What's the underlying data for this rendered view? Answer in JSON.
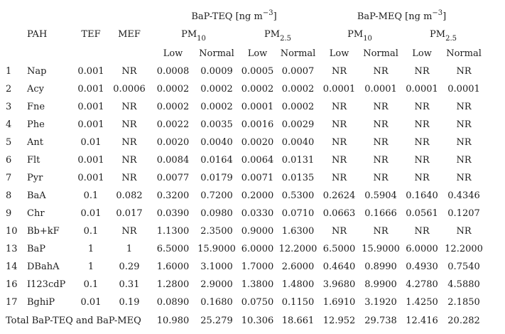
{
  "table": {
    "group_headers": {
      "teq": {
        "text": "BaP-TEQ [ng m",
        "sup": "−3",
        "close": "]"
      },
      "meq": {
        "text": "BaP-MEQ [ng m",
        "sup": "−3",
        "close": "]"
      }
    },
    "columns": {
      "pah": "PAH",
      "tef": "TEF",
      "mef": "MEF"
    },
    "pm_headers": [
      {
        "text": "PM",
        "sub": "10"
      },
      {
        "text": "PM",
        "sub": "2.5"
      },
      {
        "text": "PM",
        "sub": "10"
      },
      {
        "text": "PM",
        "sub": "2.5"
      }
    ],
    "subcolumns": [
      "Low",
      "Normal",
      "Low",
      "Normal",
      "Low",
      "Normal",
      "Low",
      "Normal"
    ],
    "rows": [
      {
        "num": "1",
        "pah": "Nap",
        "tef": "0.001",
        "mef": "NR",
        "values": [
          "0.0008",
          "0.0009",
          "0.0005",
          "0.0007",
          "NR",
          "NR",
          "NR",
          "NR"
        ]
      },
      {
        "num": "2",
        "pah": "Acy",
        "tef": "0.001",
        "mef": "0.0006",
        "values": [
          "0.0002",
          "0.0002",
          "0.0002",
          "0.0002",
          "0.0001",
          "0.0001",
          "0.0001",
          "0.0001"
        ]
      },
      {
        "num": "3",
        "pah": "Fne",
        "tef": "0.001",
        "mef": "NR",
        "values": [
          "0.0002",
          "0.0002",
          "0.0001",
          "0.0002",
          "NR",
          "NR",
          "NR",
          "NR"
        ]
      },
      {
        "num": "4",
        "pah": "Phe",
        "tef": "0.001",
        "mef": "NR",
        "values": [
          "0.0022",
          "0.0035",
          "0.0016",
          "0.0029",
          "NR",
          "NR",
          "NR",
          "NR"
        ]
      },
      {
        "num": "5",
        "pah": "Ant",
        "tef": "0.01",
        "mef": "NR",
        "values": [
          "0.0020",
          "0.0040",
          "0.0020",
          "0.0040",
          "NR",
          "NR",
          "NR",
          "NR"
        ]
      },
      {
        "num": "6",
        "pah": "Flt",
        "tef": "0.001",
        "mef": "NR",
        "values": [
          "0.0084",
          "0.0164",
          "0.0064",
          "0.0131",
          "NR",
          "NR",
          "NR",
          "NR"
        ]
      },
      {
        "num": "7",
        "pah": "Pyr",
        "tef": "0.001",
        "mef": "NR",
        "values": [
          "0.0077",
          "0.0179",
          "0.0071",
          "0.0135",
          "NR",
          "NR",
          "NR",
          "NR"
        ]
      },
      {
        "num": "8",
        "pah": "BaA",
        "tef": "0.1",
        "mef": "0.082",
        "values": [
          "0.3200",
          "0.7200",
          "0.2000",
          "0.5300",
          "0.2624",
          "0.5904",
          "0.1640",
          "0.4346"
        ]
      },
      {
        "num": "9",
        "pah": "Chr",
        "tef": "0.01",
        "mef": "0.017",
        "values": [
          "0.0390",
          "0.0980",
          "0.0330",
          "0.0710",
          "0.0663",
          "0.1666",
          "0.0561",
          "0.1207"
        ]
      },
      {
        "num": "10",
        "pah": "Bb+kF",
        "tef": "0.1",
        "mef": "NR",
        "values": [
          "1.1300",
          "2.3500",
          "0.9000",
          "1.6300",
          "NR",
          "NR",
          "NR",
          "NR"
        ]
      },
      {
        "num": "13",
        "pah": "BaP",
        "tef": "1",
        "mef": "1",
        "values": [
          "6.5000",
          "15.9000",
          "6.0000",
          "12.2000",
          "6.5000",
          "15.9000",
          "6.0000",
          "12.2000"
        ]
      },
      {
        "num": "14",
        "pah": "DBahA",
        "tef": "1",
        "mef": "0.29",
        "values": [
          "1.6000",
          "3.1000",
          "1.7000",
          "2.6000",
          "0.4640",
          "0.8990",
          "0.4930",
          "0.7540"
        ]
      },
      {
        "num": "16",
        "pah": "I123cdP",
        "tef": "0.1",
        "mef": "0.31",
        "values": [
          "1.2800",
          "2.9000",
          "1.3800",
          "1.4800",
          "3.9680",
          "8.9900",
          "4.2780",
          "4.5880"
        ]
      },
      {
        "num": "17",
        "pah": "BghiP",
        "tef": "0.01",
        "mef": "0.19",
        "values": [
          "0.0890",
          "0.1680",
          "0.0750",
          "0.1150",
          "1.6910",
          "3.1920",
          "1.4250",
          "2.1850"
        ]
      }
    ],
    "total": {
      "label": "Total BaP-TEQ and BaP-MEQ",
      "values": [
        "10.980",
        "25.279",
        "10.306",
        "18.661",
        "12.952",
        "29.738",
        "12.416",
        "20.282"
      ]
    }
  }
}
